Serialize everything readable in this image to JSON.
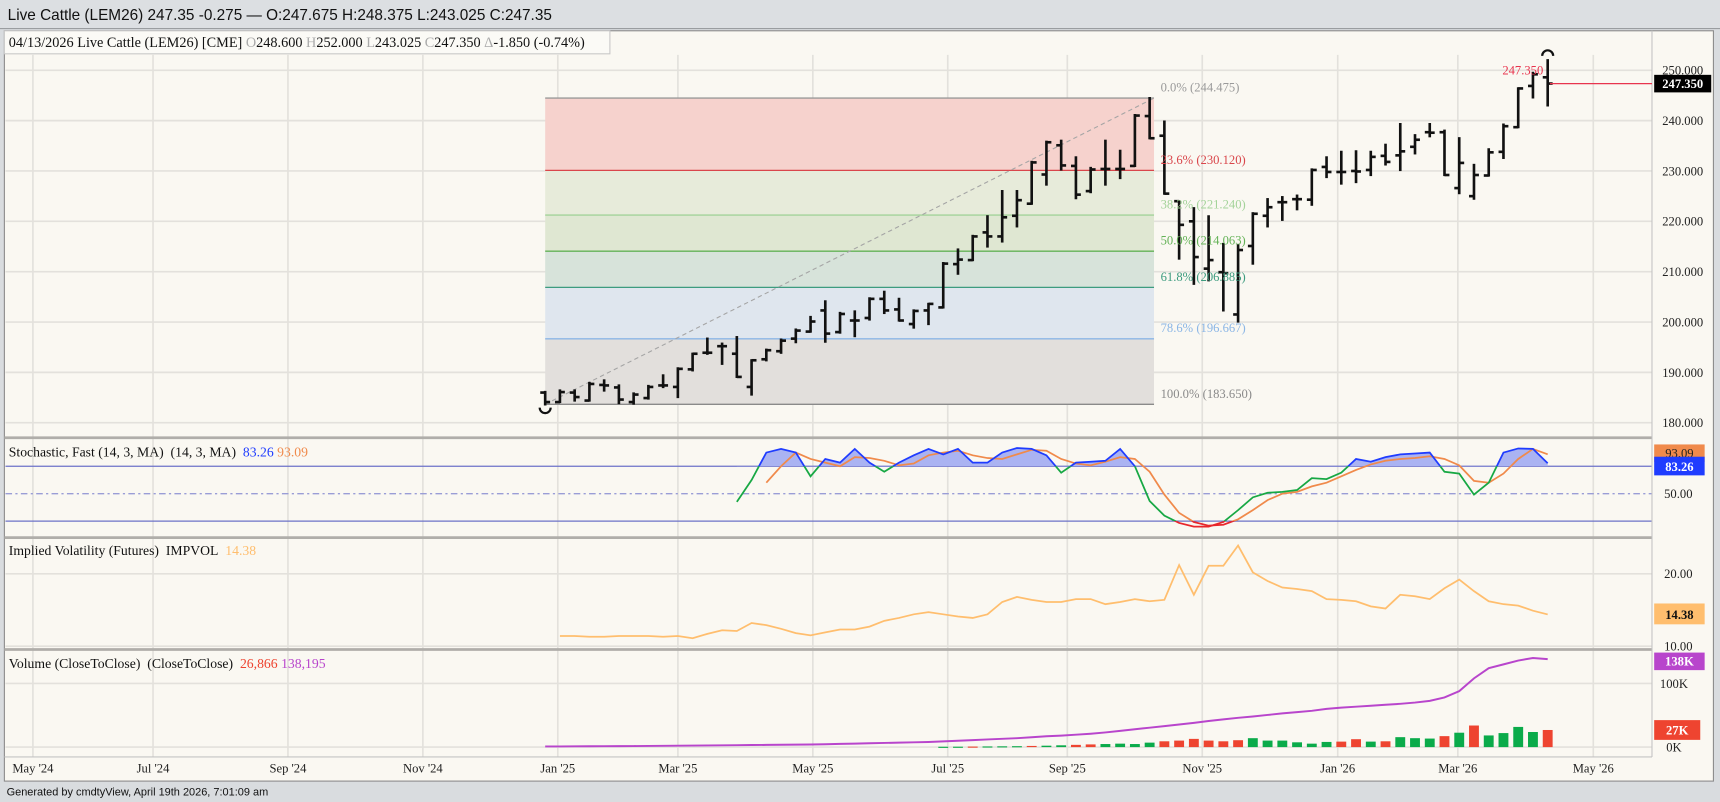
{
  "window": {
    "title": "Live Cattle (LEM26) 247.35 -0.275 — O:247.675 H:248.375 L:243.025 C:247.35"
  },
  "footer": {
    "generated": "Generated by cmdtyView, April 19th 2026, 7:01:09 am"
  },
  "legend": {
    "date": "04/13/2026",
    "name": "Live Cattle (LEM26) [CME]",
    "o_label": "O",
    "o": "248.600",
    "h_label": "H",
    "h": "252.000",
    "l_label": "L",
    "l": "243.025",
    "c_label": "C",
    "c": "247.350",
    "d_label": "Δ",
    "d": "-1.850 (-0.74%)"
  },
  "colors": {
    "background": "#faf8f2",
    "bars": "#111111",
    "last_price_line": "#e8344e",
    "stoch_k_high": "#1f3cff",
    "stoch_k_mid": "#17a844",
    "stoch_low": "#e8262b",
    "stoch_d": "#f08a4b",
    "stoch_fill": "#aab3f2",
    "impvol": "#ffbe6e",
    "volume_line": "#b845cc",
    "volume_up": "#0aab4a",
    "volume_down": "#ee4430"
  },
  "x_tick_labels": [
    "May '24",
    "Jul '24",
    "Sep '24",
    "Nov '24",
    "Jan '25",
    "Mar '25",
    "May '25",
    "Jul '25",
    "Sep '25",
    "Nov '25",
    "Jan '26",
    "Mar '26",
    "May '26"
  ],
  "weeks": [
    "2024-12-23",
    "2024-12-30",
    "2025-01-06",
    "2025-01-13",
    "2025-01-20",
    "2025-01-27",
    "2025-02-03",
    "2025-02-10",
    "2025-02-17",
    "2025-02-24",
    "2025-03-03",
    "2025-03-10",
    "2025-03-17",
    "2025-03-24",
    "2025-03-31",
    "2025-04-07",
    "2025-04-14",
    "2025-04-21",
    "2025-04-28",
    "2025-05-05",
    "2025-05-12",
    "2025-05-19",
    "2025-05-26",
    "2025-06-02",
    "2025-06-09",
    "2025-06-16",
    "2025-06-23",
    "2025-06-30",
    "2025-07-07",
    "2025-07-14",
    "2025-07-21",
    "2025-07-28",
    "2025-08-04",
    "2025-08-11",
    "2025-08-18",
    "2025-08-25",
    "2025-09-01",
    "2025-09-08",
    "2025-09-15",
    "2025-09-22",
    "2025-09-29",
    "2025-10-06",
    "2025-10-13",
    "2025-10-20",
    "2025-10-27",
    "2025-11-03",
    "2025-11-10",
    "2025-11-17",
    "2025-11-24",
    "2025-12-01",
    "2025-12-08",
    "2025-12-15",
    "2025-12-22",
    "2025-12-29",
    "2026-01-05",
    "2026-01-12",
    "2026-01-19",
    "2026-01-26",
    "2026-02-02",
    "2026-02-09",
    "2026-02-16",
    "2026-02-23",
    "2026-03-02",
    "2026-03-09",
    "2026-03-16",
    "2026-03-23",
    "2026-03-30",
    "2026-04-06",
    "2026-04-13"
  ],
  "chart_data": [
    {
      "type": "ohlc",
      "interval": "weekly",
      "ylim": [
        178,
        254
      ],
      "y_ticks": [
        "250.000",
        "240.000",
        "230.000",
        "220.000",
        "210.000",
        "200.000",
        "190.000",
        "180.000"
      ],
      "grid": true,
      "last_price": 247.35,
      "last_price_label": "247.350",
      "last_price_marker": "247.350",
      "open": [
        186,
        184.1,
        186,
        184.4,
        187.5,
        187,
        184.1,
        184.9,
        187.4,
        187.1,
        190.6,
        193.9,
        195.2,
        193.7,
        187.1,
        192.6,
        194.2,
        196.7,
        198.1,
        202.3,
        198,
        200.3,
        200.8,
        204.6,
        202.5,
        199.6,
        202.3,
        202.9,
        211.5,
        212.3,
        217.8,
        217,
        221.1,
        223.5,
        229.3,
        235.1,
        231,
        226,
        230.4,
        230.4,
        231,
        240.9,
        237,
        224,
        220,
        210.6,
        209.9,
        201.5,
        215.1,
        221.1,
        223.8,
        224.4,
        224.3,
        230.8,
        229.8,
        230,
        230.2,
        233,
        233.1,
        234.8,
        237.7,
        237.7,
        226.6,
        225,
        229.1,
        233.8,
        238.7,
        246.9,
        248.6
      ],
      "high": [
        186.1,
        186.4,
        186.4,
        187.9,
        188.4,
        187.4,
        185.8,
        187.3,
        189.4,
        190.8,
        193.7,
        196.7,
        195.7,
        197,
        192.4,
        194.5,
        196.5,
        198.5,
        201,
        204.1,
        201.8,
        202.1,
        204.7,
        206,
        204.6,
        202.3,
        203.6,
        211.7,
        214.4,
        217.1,
        221,
        226,
        226,
        231.8,
        235.8,
        236,
        232.7,
        230.6,
        236,
        234,
        241.1,
        244.475,
        239.8,
        224,
        222.6,
        221,
        215.5,
        215.3,
        221.6,
        224.4,
        224.8,
        225.1,
        230.3,
        232.7,
        233.8,
        233.9,
        233.8,
        235.2,
        239.3,
        237.1,
        239.3,
        238,
        236.5,
        231.2,
        234.3,
        239.2,
        246.4,
        249.5,
        252
      ],
      "low": [
        183.65,
        184.1,
        184.4,
        184.4,
        186.4,
        183.9,
        183.8,
        184.8,
        187.1,
        185.1,
        190.4,
        193.7,
        191.7,
        189.1,
        185.6,
        192.4,
        193.9,
        196,
        198.1,
        196.1,
        197.9,
        197.2,
        200.5,
        201.8,
        200.3,
        198.9,
        199.6,
        202.9,
        209.6,
        212.3,
        215,
        216,
        219,
        223.5,
        227.3,
        230.3,
        224.6,
        225.8,
        227.3,
        228.6,
        231,
        236.5,
        225.5,
        212.6,
        207.6,
        208.3,
        202.3,
        200.1,
        211.6,
        219,
        220.3,
        222.4,
        223.3,
        228.8,
        227.5,
        227.8,
        229.2,
        231.3,
        230.2,
        233.5,
        236.9,
        229.2,
        225.6,
        224.5,
        229.1,
        232.6,
        238.7,
        244.6,
        243.025
      ],
      "close": [
        184.1,
        186.1,
        185.1,
        187.7,
        187.4,
        184.6,
        185.6,
        187.1,
        187.4,
        190.7,
        193.7,
        193.9,
        195.2,
        189.1,
        192.4,
        194.4,
        196.3,
        198.3,
        200.1,
        197.7,
        201.6,
        200.3,
        204.6,
        202.3,
        200.3,
        202.2,
        203.6,
        211.6,
        212.4,
        217,
        217,
        220.8,
        224.2,
        231.7,
        235.7,
        231.1,
        225.3,
        230.3,
        230.4,
        230.4,
        241,
        236.5,
        225.5,
        219.3,
        212.9,
        212.3,
        209.7,
        214.3,
        221.5,
        222.8,
        223.8,
        224.4,
        230.2,
        229.8,
        229.8,
        229.9,
        232.8,
        231.8,
        233.9,
        236.2,
        237.6,
        229.2,
        231.6,
        229.2,
        233.7,
        238.9,
        246.4,
        249.2,
        247.35
      ],
      "fibonacci": {
        "from_week": "2024-12-23",
        "to_week": "2025-10-06",
        "levels": [
          {
            "label": "0.0% (244.475)",
            "value": 244.475,
            "color": "#9a9a9a",
            "zone": "#f6d2cd"
          },
          {
            "label": "23.6% (230.120)",
            "value": 230.12,
            "color": "#d9464b",
            "zone": "#e7ebda"
          },
          {
            "label": "38.2% (221.240)",
            "value": 221.24,
            "color": "#a4d39a",
            "zone": "#dfe7d2"
          },
          {
            "label": "50.0% (214.063)",
            "value": 214.063,
            "color": "#64b257",
            "zone": "#d7e3da"
          },
          {
            "label": "61.8% (206.885)",
            "value": 206.885,
            "color": "#3d9c7f",
            "zone": "#dfe6ee"
          },
          {
            "label": "78.6% (196.667)",
            "value": 196.667,
            "color": "#8bb6e6",
            "zone": "#e2dfdc"
          },
          {
            "label": "100.0% (183.650)",
            "value": 183.65,
            "color": "#8a8a8a",
            "zone": null
          }
        ]
      }
    },
    {
      "type": "line",
      "title": "Stochastic, Fast (14, 3, MA)",
      "params": "(14, 3, MA)",
      "k_value": "83.26",
      "d_value": "93.09",
      "ylim": [
        0,
        100
      ],
      "bands": [
        80,
        20
      ],
      "midline": 50,
      "y_ticks": [
        "50.00"
      ],
      "series": [
        {
          "key": "K",
          "values": [
            null,
            null,
            null,
            null,
            null,
            null,
            null,
            null,
            null,
            null,
            null,
            null,
            null,
            41,
            65,
            95,
            99,
            95,
            69,
            88,
            84,
            99,
            84,
            74,
            84,
            92,
            99,
            93,
            99,
            84,
            84,
            95,
            100,
            99,
            92,
            73,
            84,
            85,
            86,
            99,
            80,
            42,
            26,
            18,
            14,
            14,
            19,
            32,
            46,
            51,
            52,
            54,
            67,
            66,
            73,
            88,
            85,
            90,
            93,
            94,
            95,
            74,
            72,
            49,
            62,
            95,
            99.5,
            99,
            83.26
          ]
        },
        {
          "key": "D",
          "values": [
            null,
            null,
            null,
            null,
            null,
            null,
            null,
            null,
            null,
            null,
            null,
            null,
            null,
            null,
            null,
            62,
            80,
            95,
            88,
            84,
            80,
            90,
            89,
            86,
            81,
            83,
            92,
            95,
            97,
            92,
            89,
            88,
            93,
            98,
            97,
            88,
            83,
            81,
            85,
            90,
            88,
            74,
            49,
            29,
            19,
            15,
            16,
            22,
            32,
            43,
            50,
            52,
            58,
            62,
            69,
            76,
            82,
            86,
            88,
            89,
            91,
            88,
            81,
            64,
            62,
            72,
            88,
            99,
            93.09
          ]
        }
      ]
    },
    {
      "type": "line",
      "title": "Implied Volatility (Futures)",
      "series_label": "IMPVOL",
      "value": "14.38",
      "ylim": [
        10,
        21.5
      ],
      "y_ticks": [
        "20.00",
        "10.00"
      ],
      "values": [
        null,
        11.4,
        11.4,
        11.3,
        11.3,
        11.4,
        11.4,
        11.4,
        11.3,
        11.4,
        11.1,
        11.7,
        12.2,
        12.1,
        13.2,
        12.9,
        12.4,
        11.8,
        11.5,
        11.9,
        12.3,
        12.3,
        12.7,
        13.5,
        13.9,
        14.4,
        14.7,
        14.4,
        14.1,
        13.9,
        14.4,
        16.1,
        16.8,
        16.4,
        16.1,
        16.1,
        16.5,
        16.5,
        15.8,
        16.1,
        16.5,
        16.2,
        16.4,
        21.2,
        17.1,
        21.1,
        21.1,
        23.9,
        20.2,
        19.0,
        18.1,
        17.9,
        17.6,
        16.5,
        16.4,
        16.2,
        15.5,
        15.2,
        17.1,
        16.9,
        16.5,
        18.0,
        19.2,
        17.6,
        16.2,
        15.8,
        15.6,
        14.9,
        14.38
      ]
    },
    {
      "type": "bar",
      "title": "Volume (CloseToClose)",
      "params": "(CloseToClose)",
      "volume_value": "26,866",
      "line_value": "138,195",
      "units": "K",
      "y_ticks": [
        "100K",
        "0K"
      ],
      "volume_tag": "27K",
      "line_tag": "138K",
      "volume": [
        null,
        null,
        null,
        null,
        null,
        null,
        null,
        null,
        null,
        null,
        null,
        null,
        null,
        null,
        null,
        null,
        null,
        null,
        null,
        null,
        null,
        null,
        null,
        null,
        null,
        null,
        null,
        0.5,
        0.6,
        0.8,
        1,
        1.2,
        1.4,
        1.8,
        2.2,
        2.8,
        3.5,
        4.2,
        4.8,
        5.4,
        4.8,
        7,
        9.1,
        10.2,
        12.9,
        10.2,
        9.1,
        10.8,
        14,
        10.2,
        10.2,
        7.5,
        5.4,
        8.1,
        8.6,
        12.4,
        8.6,
        9.1,
        15.6,
        14,
        13.4,
        17.2,
        22.6,
        33.9,
        18.3,
        22,
        31.7,
        23.7,
        26.866
      ],
      "direction": [
        null,
        null,
        null,
        null,
        null,
        null,
        null,
        null,
        null,
        null,
        null,
        null,
        null,
        null,
        null,
        null,
        null,
        null,
        null,
        null,
        null,
        null,
        null,
        null,
        null,
        null,
        null,
        "up",
        "up",
        "down",
        "up",
        "up",
        "up",
        "down",
        "up",
        "up",
        "down",
        "down",
        "up",
        "up",
        "up",
        "up",
        "down",
        "down",
        "down",
        "down",
        "down",
        "down",
        "up",
        "up",
        "up",
        "up",
        "up",
        "up",
        "down",
        "down",
        "up",
        "down",
        "up",
        "up",
        "up",
        "down",
        "up",
        "down",
        "up",
        "up",
        "up",
        "up",
        "down"
      ],
      "line": [
        1,
        1,
        1.2,
        1.3,
        1.4,
        1.5,
        1.6,
        1.8,
        2,
        2.2,
        2.4,
        2.6,
        2.8,
        3,
        3.2,
        3.4,
        3.6,
        3.8,
        4,
        4.5,
        5,
        5.5,
        6,
        6.5,
        7,
        7.5,
        8,
        9,
        10,
        11,
        12,
        13,
        14,
        15.5,
        17,
        18,
        19.5,
        21,
        23,
        25.5,
        28,
        30.5,
        33,
        35.5,
        38,
        41,
        43.5,
        46,
        48,
        50.5,
        53,
        55,
        57,
        60,
        62,
        63.5,
        65,
        66.5,
        68,
        70,
        72.6,
        78,
        88,
        108,
        124,
        130,
        136,
        140,
        138.195
      ]
    }
  ]
}
